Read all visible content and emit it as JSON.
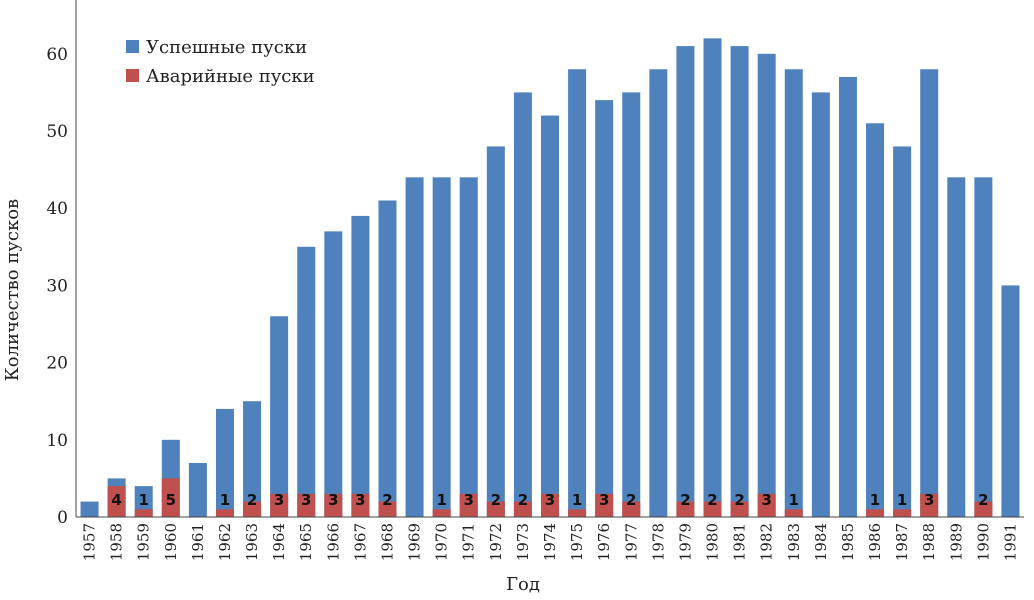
{
  "chart_data": {
    "type": "bar",
    "stacked": "overlay",
    "title": "",
    "xlabel": "Год",
    "ylabel": "Количество пусков",
    "ylim": [
      0,
      66
    ],
    "yticks": [
      0,
      10,
      20,
      30,
      40,
      50,
      60
    ],
    "grid": false,
    "legend_position": "top-left",
    "categories": [
      "1957",
      "1958",
      "1959",
      "1960",
      "1961",
      "1962",
      "1963",
      "1964",
      "1965",
      "1966",
      "1967",
      "1968",
      "1969",
      "1970",
      "1971",
      "1972",
      "1973",
      "1974",
      "1975",
      "1976",
      "1977",
      "1978",
      "1979",
      "1980",
      "1981",
      "1982",
      "1983",
      "1984",
      "1985",
      "1986",
      "1987",
      "1988",
      "1989",
      "1990",
      "1991"
    ],
    "series": [
      {
        "name": "Успешные пуски",
        "color": "#4f81bd",
        "values": [
          2,
          5,
          4,
          10,
          7,
          14,
          15,
          26,
          35,
          37,
          39,
          41,
          44,
          44,
          44,
          48,
          55,
          52,
          58,
          54,
          55,
          58,
          61,
          62,
          61,
          60,
          58,
          55,
          57,
          51,
          48,
          58,
          44,
          44,
          30
        ]
      },
      {
        "name": "Аварийные пуски",
        "color": "#c0504d",
        "values": [
          0,
          4,
          1,
          5,
          0,
          1,
          2,
          3,
          3,
          3,
          3,
          2,
          0,
          1,
          3,
          2,
          2,
          3,
          1,
          3,
          2,
          0,
          2,
          2,
          2,
          3,
          1,
          0,
          0,
          1,
          1,
          3,
          0,
          2,
          0
        ]
      }
    ]
  }
}
